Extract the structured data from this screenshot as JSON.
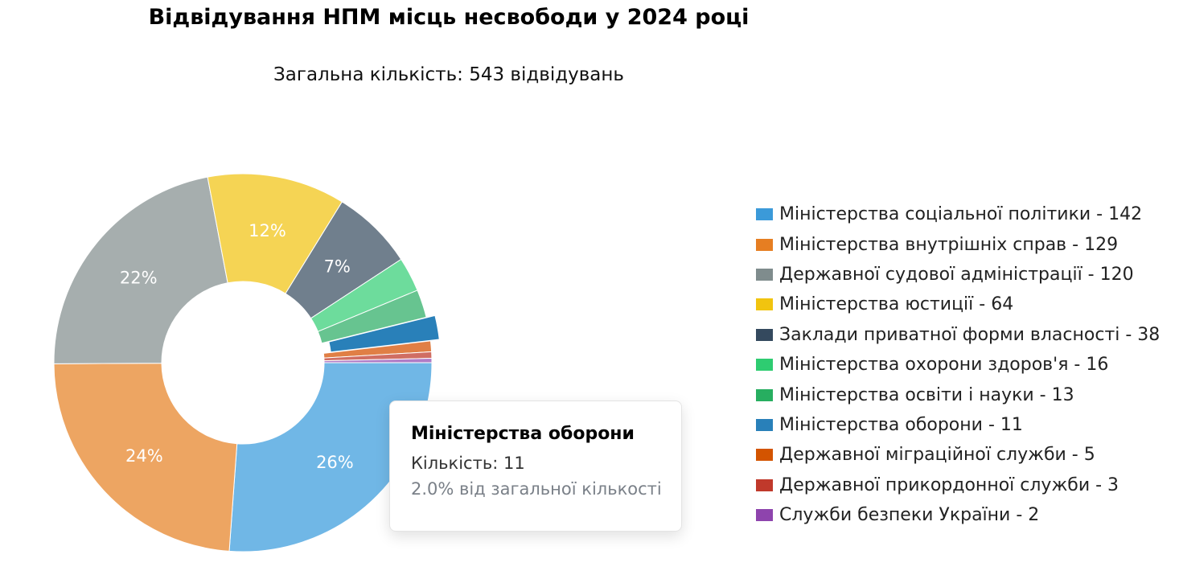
{
  "title": "Відвідування НПМ місць несвободи у 2024 році",
  "subtitle": "Загальна кількість: 543 відвідувань",
  "chart_data": {
    "type": "pie",
    "variant": "doughnut",
    "total": 543,
    "categories": [
      "Міністерства соціальної політики",
      "Міністерства внутрішніх справ",
      "Державної судової адміністрації",
      "Міністерства юстиції",
      "Заклади приватної форми власності",
      "Міністерства охорони здоров'я",
      "Міністерства освіти і науки",
      "Міністерства оборони",
      "Державної міграційної служби",
      "Державної прикордонної служби",
      "Служби безпеки України"
    ],
    "values": [
      142,
      129,
      120,
      64,
      38,
      16,
      13,
      11,
      5,
      3,
      2
    ],
    "colors": [
      "#3b9ad9",
      "#e67e22",
      "#7f8c8d",
      "#f1c40f",
      "#34495e",
      "#2ecc71",
      "#27ae60",
      "#2980b9",
      "#d35400",
      "#c0392b",
      "#8e44ad"
    ],
    "slice_colors": [
      "#70b7e6",
      "#eda562",
      "#a6aeae",
      "#f5d454",
      "#707f8d",
      "#6ddc9c",
      "#67c490",
      "#2980b9",
      "#e07f45",
      "#d06e63",
      "#b07cc6"
    ],
    "data_labels": [
      "26%",
      "24%",
      "22%",
      "12%",
      "7%",
      "",
      "",
      "",
      "",
      "",
      ""
    ],
    "legend_items": [
      "Міністерства соціальної політики - 142",
      "Міністерства внутрішніх справ - 129",
      "Державної судової адміністрації - 120",
      "Міністерства юстиції - 64",
      "Заклади приватної форми власності - 38",
      "Міністерства охорони здоров'я - 16",
      "Міністерства освіти і науки - 13",
      "Міністерства оборони - 11",
      "Державної міграційної служби - 5",
      "Державної прикордонної служби - 3",
      "Служби безпеки України - 2"
    ],
    "legend_position": "right",
    "highlighted_index": 7
  },
  "tooltip": {
    "title": "Міністерства оборони",
    "count": "Кількість: 11",
    "percent": "2.0% від загальної кількості"
  }
}
